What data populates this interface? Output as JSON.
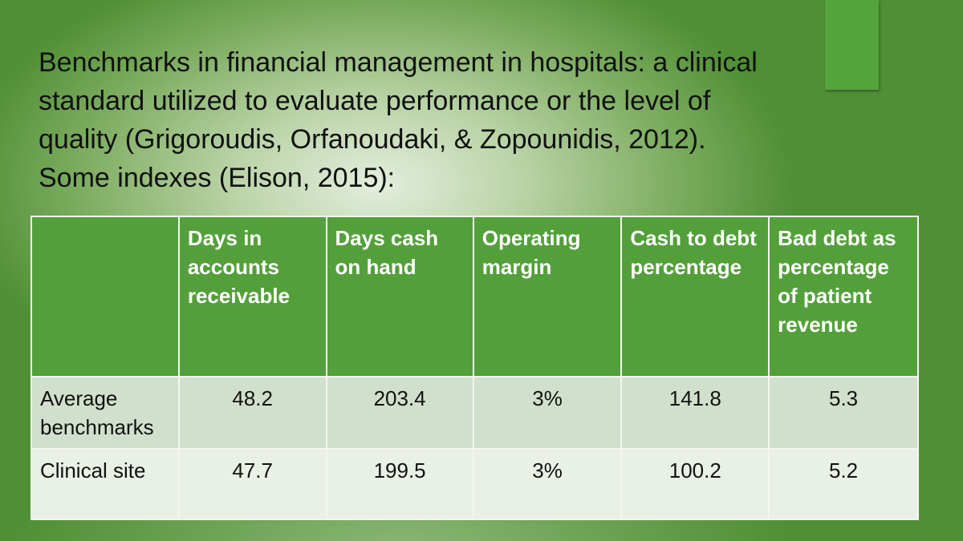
{
  "title_lines": [
    "Benchmarks in financial management in hospitals: a clinical",
    "standard utilized to evaluate performance or the level of",
    "quality (Grigoroudis, Orfanoudaki, & Zopounidis, 2012).",
    "Some indexes (Elison, 2015):"
  ],
  "table": {
    "headers": [
      "",
      "Days in accounts receivable",
      "Days cash on hand",
      "Operating margin",
      "Cash to debt percentage",
      "Bad debt as percentage of patient revenue"
    ],
    "rows": [
      {
        "label": "Average benchmarks",
        "values": [
          "48.2",
          "203.4",
          "3%",
          "141.8",
          "5.3"
        ]
      },
      {
        "label": "Clinical site",
        "values": [
          "47.7",
          "199.5",
          "3%",
          "100.2",
          "5.2"
        ]
      }
    ]
  }
}
